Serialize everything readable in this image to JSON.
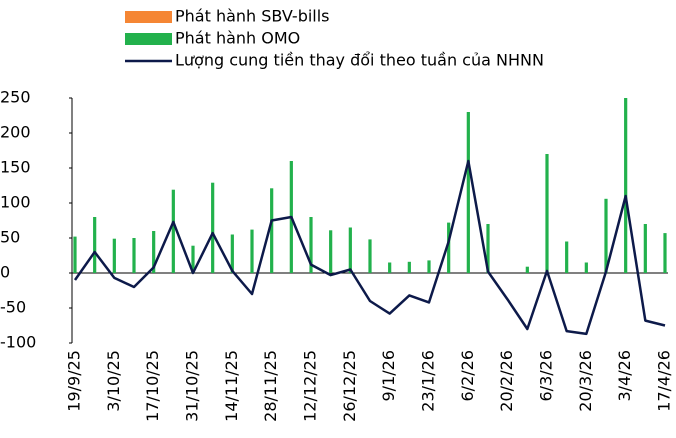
{
  "chart_data": {
    "type": "bar-line",
    "categories": [
      "19/9/25",
      null,
      "3/10/25",
      null,
      "17/10/25",
      null,
      "31/10/25",
      null,
      "14/11/25",
      null,
      "28/11/25",
      null,
      "12/12/25",
      null,
      "26/12/25",
      null,
      "9/1/26",
      null,
      "23/1/26",
      null,
      "6/2/26",
      null,
      "20/2/26",
      null,
      "6/3/26",
      null,
      "20/3/26",
      null,
      "3/4/26",
      null,
      "17/4/26"
    ],
    "series": [
      {
        "name": "Phát hành SBV-bills",
        "color": "#f58634",
        "kind": "bar",
        "values": [
          0,
          0,
          0,
          0,
          0,
          0,
          0,
          0,
          0,
          0,
          0,
          0,
          0,
          0,
          0,
          0,
          0,
          0,
          0,
          0,
          0,
          0,
          0,
          0,
          0,
          0,
          0,
          0,
          0,
          0,
          0
        ]
      },
      {
        "name": "Phát hành OMO",
        "color": "#22b14c",
        "kind": "bar",
        "values": [
          52,
          80,
          49,
          50,
          60,
          119,
          39,
          129,
          55,
          62,
          121,
          160,
          80,
          61,
          65,
          48,
          15,
          16,
          18,
          72,
          230,
          70,
          0,
          9,
          170,
          45,
          15,
          106,
          250,
          70,
          57
        ]
      },
      {
        "name": "Lượng cung tiền thay đổi theo tuần của NHNN",
        "color": "#0d1a4a",
        "kind": "line",
        "values": [
          -10,
          30,
          -7,
          -20,
          8,
          73,
          0,
          57,
          3,
          -30,
          75,
          80,
          12,
          -3,
          5,
          -40,
          -58,
          -32,
          -42,
          45,
          160,
          2,
          -38,
          -80,
          3,
          -83,
          -87,
          2,
          110,
          -68,
          -75
        ]
      }
    ],
    "ylim": [
      -100,
      250
    ],
    "yticks": [
      -100,
      -50,
      0,
      50,
      100,
      150,
      200,
      250
    ],
    "grid": false
  }
}
